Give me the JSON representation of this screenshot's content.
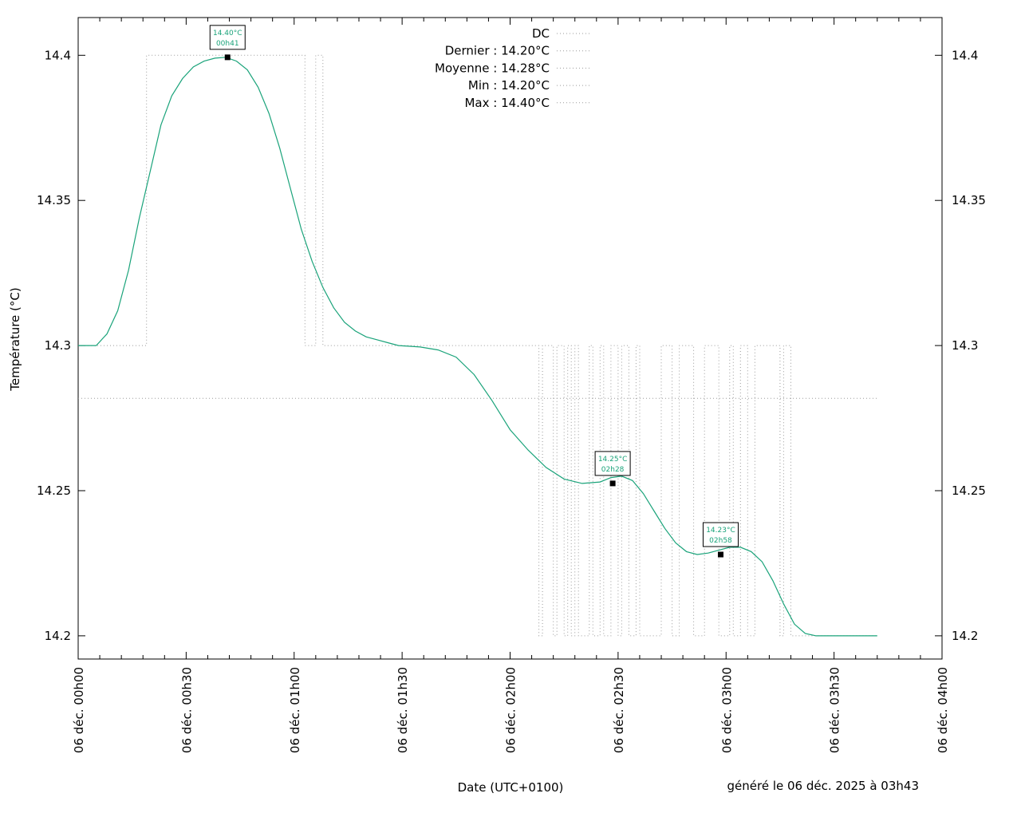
{
  "chart_data": {
    "type": "line",
    "xlabel": "Date (UTC+0100)",
    "ylabel": "Température (°C)",
    "footer": "généré le 06 déc. 2025 à 03h43",
    "xlim": [
      0,
      240
    ],
    "ylim": [
      14.192,
      14.413
    ],
    "x_ticks": [
      {
        "value": 0,
        "label": "06 déc. 00h00"
      },
      {
        "value": 30,
        "label": "06 déc. 00h30"
      },
      {
        "value": 60,
        "label": "06 déc. 01h00"
      },
      {
        "value": 90,
        "label": "06 déc. 01h30"
      },
      {
        "value": 120,
        "label": "06 déc. 02h00"
      },
      {
        "value": 150,
        "label": "06 déc. 02h30"
      },
      {
        "value": 180,
        "label": "06 déc. 03h00"
      },
      {
        "value": 210,
        "label": "06 déc. 03h30"
      },
      {
        "value": 240,
        "label": "06 déc. 04h00"
      }
    ],
    "y_ticks": [
      {
        "value": 14.2,
        "label": "14.2"
      },
      {
        "value": 14.25,
        "label": "14.25"
      },
      {
        "value": 14.3,
        "label": "14.3"
      },
      {
        "value": 14.35,
        "label": "14.35"
      },
      {
        "value": 14.4,
        "label": "14.4"
      }
    ],
    "legend": {
      "position": "top-center",
      "entries": [
        "DC",
        "Dernier : 14.20°C",
        "Moyenne : 14.28°C",
        "Min : 14.20°C",
        "Max : 14.40°C"
      ]
    },
    "series": [
      {
        "name": "DC",
        "style": "dotted",
        "color": "#9a9a9a",
        "x": [
          0,
          19,
          19,
          63,
          63,
          66,
          66,
          68,
          68,
          128,
          128,
          129,
          129,
          132,
          132,
          133,
          133,
          135,
          135,
          136,
          136,
          137,
          137,
          138,
          138,
          139,
          139,
          142,
          142,
          143,
          143,
          145,
          145,
          146,
          146,
          148,
          148,
          150,
          150,
          151,
          151,
          153,
          153,
          155,
          155,
          156,
          156,
          162,
          162,
          165,
          165,
          167,
          167,
          171,
          171,
          174,
          174,
          178,
          178,
          181,
          181,
          182,
          182,
          184,
          184,
          186,
          186,
          188,
          188,
          195,
          195,
          196,
          196,
          198,
          198,
          222
        ],
        "y": [
          14.3,
          14.3,
          14.4,
          14.4,
          14.3,
          14.3,
          14.4,
          14.4,
          14.3,
          14.3,
          14.2,
          14.2,
          14.3,
          14.3,
          14.2,
          14.2,
          14.3,
          14.3,
          14.2,
          14.2,
          14.3,
          14.3,
          14.2,
          14.2,
          14.3,
          14.3,
          14.2,
          14.2,
          14.3,
          14.3,
          14.2,
          14.2,
          14.3,
          14.3,
          14.2,
          14.2,
          14.3,
          14.3,
          14.2,
          14.2,
          14.3,
          14.3,
          14.2,
          14.2,
          14.3,
          14.3,
          14.2,
          14.2,
          14.3,
          14.3,
          14.2,
          14.2,
          14.3,
          14.3,
          14.2,
          14.2,
          14.3,
          14.3,
          14.2,
          14.2,
          14.3,
          14.3,
          14.2,
          14.2,
          14.3,
          14.3,
          14.2,
          14.2,
          14.3,
          14.3,
          14.2,
          14.2,
          14.3,
          14.3,
          14.2,
          14.2
        ]
      },
      {
        "name": "Moyenne",
        "style": "dotted",
        "color": "#9a9a9a",
        "x": [
          0,
          222
        ],
        "y": [
          14.2818,
          14.2818
        ]
      },
      {
        "name": "smoothed",
        "style": "solid",
        "color": "#1aa37a",
        "x": [
          0,
          5,
          8,
          11,
          14,
          17,
          20,
          23,
          26,
          29,
          32,
          35,
          38,
          41,
          44,
          47,
          50,
          53,
          56,
          59,
          62,
          65,
          68,
          71,
          74,
          77,
          80,
          83,
          86,
          89,
          95,
          100,
          105,
          110,
          115,
          120,
          125,
          130,
          135,
          140,
          145,
          148,
          151,
          154,
          157,
          160,
          163,
          166,
          169,
          172,
          175,
          178,
          181,
          184,
          187,
          190,
          193,
          196,
          199,
          202,
          205,
          208,
          212,
          216,
          222
        ],
        "y": [
          14.3,
          14.3,
          14.304,
          14.312,
          14.326,
          14.344,
          14.36,
          14.376,
          14.386,
          14.392,
          14.396,
          14.398,
          14.399,
          14.3993,
          14.398,
          14.395,
          14.389,
          14.38,
          14.368,
          14.354,
          14.34,
          14.329,
          14.32,
          14.313,
          14.308,
          14.305,
          14.303,
          14.302,
          14.301,
          14.3,
          14.2995,
          14.2985,
          14.296,
          14.29,
          14.281,
          14.271,
          14.264,
          14.258,
          14.254,
          14.2525,
          14.253,
          14.2545,
          14.255,
          14.2535,
          14.249,
          14.243,
          14.237,
          14.232,
          14.229,
          14.228,
          14.2285,
          14.2295,
          14.2305,
          14.2305,
          14.229,
          14.2255,
          14.219,
          14.211,
          14.204,
          14.2008,
          14.2,
          14.2,
          14.2,
          14.2,
          14.2
        ]
      }
    ],
    "annotations": [
      {
        "x": 41.5,
        "y": 14.3993,
        "label": "14.40°C",
        "time": "00h41"
      },
      {
        "x": 148.5,
        "y": 14.2525,
        "label": "14.25°C",
        "time": "02h28"
      },
      {
        "x": 178.5,
        "y": 14.228,
        "label": "14.23°C",
        "time": "02h58"
      }
    ]
  }
}
